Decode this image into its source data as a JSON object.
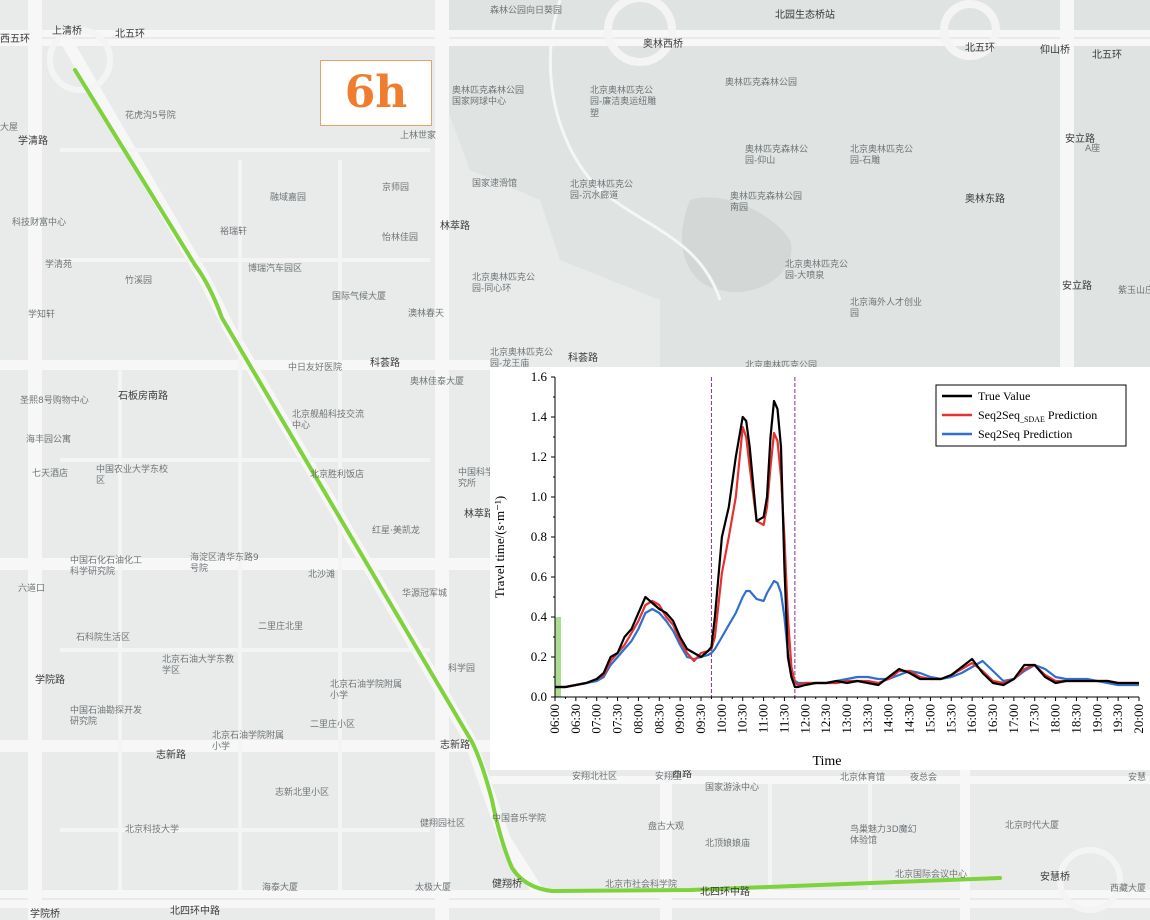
{
  "overlay": {
    "hour_label": "6h"
  },
  "map": {
    "route_color": "#7ed23c",
    "labels": [
      "上清桥",
      "北五环",
      "森林公园向日葵园",
      "北园生态桥站",
      "奥林西桥",
      "北五环",
      "仰山桥",
      "北五环",
      "奥林匹克森林公园国家网球中心",
      "北京奥林匹克公园-廉洁奥运纽雕塑",
      "奥林匹克森林公园",
      "花虎沟5号院",
      "大屋",
      "学清路",
      "上林世家",
      "国家速滑馆",
      "北京奥林匹克公园-沉水廊道",
      "奥林匹克森林公园-仰山",
      "北京奥林匹克公园-石雕",
      "安立路",
      "A座",
      "融域嘉园",
      "京师园",
      "奥林匹克森林公园南园",
      "奥林东路",
      "科技财富中心",
      "裕瑞轩",
      "林萃路",
      "怡林佳园",
      "学清苑",
      "博瑞汽车园区",
      "北京奥林匹克公园-同心环",
      "北京奥林匹克公园-大喷泉",
      "竹溪园",
      "国际气候大厦",
      "北京海外人才创业园",
      "紫玉山庄",
      "学知轩",
      "澳林春天",
      "北京奥林匹克公园-龙王庙",
      "科荟路",
      "科荟路",
      "北京奥林匹克公园",
      "中日友好医院",
      "奥林佳泰大厦",
      "圣熙8号购物中心",
      "石板房南路",
      "北京舰船科技交流中心",
      "海丰园公寓",
      "北京胜利饭店",
      "七天酒店",
      "中国农业大学东校区",
      "中国科学院心理研究所",
      "林萃路",
      "红星·美凯龙",
      "中国石化石油化工科学研究院",
      "海淀区清华东路9号院",
      "北沙滩",
      "六道口",
      "华源冠军城",
      "二里庄北里",
      "石科院生活区",
      "北京石油大学东教学区",
      "北京石油学院附属小学",
      "中国石油勘探开发研究院",
      "二里庄小区",
      "北京石油学院附属小学",
      "志新路",
      "志新路",
      "安翔北社区",
      "安翔里",
      "学院路",
      "北京体育馆",
      "夜总会",
      "安慧",
      "志新北里小区",
      "国家游泳中心",
      "健翔园社区",
      "中国音乐学院",
      "北京科技大学",
      "盘古大观",
      "北京时代大厦",
      "北顶娘娘庙",
      "鸟巢魅力3D魔幻体验馆",
      "海泰大厦",
      "太极大厦",
      "健翔桥",
      "北京市社会科学院",
      "北京国际会议中心",
      "安慧桥",
      "西藏大厦",
      "学院桥",
      "北四环中路",
      "北四环中路",
      "科学园",
      "西路",
      "安立路",
      "西五环"
    ]
  },
  "chart_data": {
    "type": "line",
    "x_categories": [
      "06:00",
      "06:30",
      "07:00",
      "07:30",
      "08:00",
      "08:30",
      "09:00",
      "09:30",
      "10:00",
      "10:30",
      "11:00",
      "11:30",
      "12:00",
      "12:30",
      "13:00",
      "13:30",
      "14:00",
      "14:30",
      "15:00",
      "15:30",
      "16:00",
      "16:30",
      "17:00",
      "17:30",
      "18:00",
      "18:30",
      "19:00",
      "19:30",
      "20:00"
    ],
    "xlabel": "Time",
    "ylabel": "Travel time/(s·m⁻¹)",
    "ylim": [
      0,
      1.6
    ],
    "yticks": [
      "0.0",
      "0.2",
      "0.4",
      "0.6",
      "0.8",
      "1.0",
      "1.2",
      "1.4",
      "1.6"
    ],
    "annotations": {
      "vertical_dashed_lines_at": [
        "09:45",
        "11:45"
      ],
      "highlight_band": {
        "from": "06:00",
        "to": "06:08",
        "height": 0.4
      }
    },
    "legend": {
      "placement": "top-right"
    },
    "series": [
      {
        "name": "True Value",
        "legend_main": "True Value",
        "legend_sub": "",
        "legend_suffix": "",
        "color": "#000000",
        "x": [
          "06:00",
          "06:15",
          "06:30",
          "06:45",
          "07:00",
          "07:10",
          "07:20",
          "07:30",
          "07:40",
          "07:50",
          "08:00",
          "08:10",
          "08:20",
          "08:30",
          "08:40",
          "08:50",
          "09:00",
          "09:10",
          "09:20",
          "09:30",
          "09:40",
          "09:45",
          "09:50",
          "10:00",
          "10:10",
          "10:20",
          "10:30",
          "10:35",
          "10:40",
          "10:50",
          "11:00",
          "11:05",
          "11:10",
          "11:15",
          "11:20",
          "11:25",
          "11:30",
          "11:35",
          "11:40",
          "11:45",
          "11:50",
          "12:00",
          "12:15",
          "12:30",
          "12:45",
          "13:00",
          "13:15",
          "13:30",
          "13:45",
          "14:00",
          "14:15",
          "14:30",
          "14:45",
          "15:00",
          "15:15",
          "15:30",
          "15:45",
          "16:00",
          "16:15",
          "16:30",
          "16:45",
          "17:00",
          "17:15",
          "17:30",
          "17:45",
          "18:00",
          "18:15",
          "18:30",
          "18:45",
          "19:00",
          "19:15",
          "19:30",
          "19:45",
          "20:00"
        ],
        "y": [
          0.05,
          0.05,
          0.06,
          0.07,
          0.09,
          0.12,
          0.2,
          0.22,
          0.3,
          0.34,
          0.42,
          0.5,
          0.47,
          0.44,
          0.42,
          0.38,
          0.3,
          0.24,
          0.22,
          0.2,
          0.23,
          0.25,
          0.4,
          0.8,
          0.95,
          1.2,
          1.4,
          1.38,
          1.25,
          0.88,
          0.9,
          1.0,
          1.3,
          1.48,
          1.44,
          1.25,
          0.65,
          0.2,
          0.1,
          0.05,
          0.05,
          0.06,
          0.07,
          0.07,
          0.08,
          0.07,
          0.08,
          0.07,
          0.06,
          0.1,
          0.14,
          0.12,
          0.09,
          0.09,
          0.09,
          0.11,
          0.15,
          0.19,
          0.12,
          0.07,
          0.06,
          0.09,
          0.16,
          0.16,
          0.1,
          0.07,
          0.08,
          0.08,
          0.08,
          0.08,
          0.08,
          0.07,
          0.07,
          0.07
        ]
      },
      {
        "name": "Seq2Seq_SDAE Prediction",
        "legend_main": "Seq2Seq",
        "legend_sub": "_SDAE",
        "legend_suffix": " Prediction",
        "color": "#e8312f",
        "x": [
          "06:00",
          "06:15",
          "06:30",
          "06:45",
          "07:00",
          "07:10",
          "07:20",
          "07:30",
          "07:40",
          "07:50",
          "08:00",
          "08:10",
          "08:20",
          "08:30",
          "08:40",
          "08:50",
          "09:00",
          "09:10",
          "09:20",
          "09:30",
          "09:40",
          "09:45",
          "09:50",
          "10:00",
          "10:10",
          "10:20",
          "10:30",
          "10:35",
          "10:40",
          "10:50",
          "11:00",
          "11:05",
          "11:10",
          "11:15",
          "11:20",
          "11:25",
          "11:30",
          "11:35",
          "11:40",
          "11:45",
          "11:50",
          "12:00",
          "12:15",
          "12:30",
          "12:45",
          "13:00",
          "13:15",
          "13:30",
          "13:45",
          "14:00",
          "14:15",
          "14:30",
          "14:45",
          "15:00",
          "15:15",
          "15:30",
          "15:45",
          "16:00",
          "16:15",
          "16:30",
          "16:45",
          "17:00",
          "17:15",
          "17:30",
          "17:45",
          "18:00",
          "18:15",
          "18:30",
          "18:45",
          "19:00",
          "19:15",
          "19:30",
          "19:45",
          "20:00"
        ],
        "y": [
          0.05,
          0.05,
          0.06,
          0.07,
          0.09,
          0.11,
          0.18,
          0.22,
          0.26,
          0.32,
          0.38,
          0.46,
          0.48,
          0.46,
          0.4,
          0.36,
          0.28,
          0.22,
          0.18,
          0.22,
          0.23,
          0.24,
          0.3,
          0.62,
          0.8,
          1.0,
          1.35,
          1.3,
          1.15,
          0.88,
          0.86,
          0.95,
          1.15,
          1.32,
          1.28,
          1.1,
          0.8,
          0.4,
          0.15,
          0.07,
          0.06,
          0.07,
          0.07,
          0.07,
          0.07,
          0.08,
          0.08,
          0.08,
          0.07,
          0.09,
          0.13,
          0.13,
          0.1,
          0.09,
          0.09,
          0.11,
          0.14,
          0.17,
          0.13,
          0.08,
          0.07,
          0.09,
          0.14,
          0.16,
          0.11,
          0.08,
          0.08,
          0.08,
          0.08,
          0.08,
          0.08,
          0.07,
          0.07,
          0.07
        ]
      },
      {
        "name": "Seq2Seq Prediction",
        "legend_main": "Seq2Seq Prediction",
        "legend_sub": "",
        "legend_suffix": "",
        "color": "#2f6fd0",
        "x": [
          "06:00",
          "06:15",
          "06:30",
          "06:45",
          "07:00",
          "07:10",
          "07:20",
          "07:30",
          "07:40",
          "07:50",
          "08:00",
          "08:10",
          "08:20",
          "08:30",
          "08:40",
          "08:50",
          "09:00",
          "09:10",
          "09:20",
          "09:30",
          "09:40",
          "09:45",
          "09:50",
          "10:00",
          "10:10",
          "10:20",
          "10:30",
          "10:35",
          "10:40",
          "10:50",
          "11:00",
          "11:05",
          "11:10",
          "11:15",
          "11:20",
          "11:25",
          "11:30",
          "11:35",
          "11:40",
          "11:45",
          "11:50",
          "12:00",
          "12:15",
          "12:30",
          "12:45",
          "13:00",
          "13:15",
          "13:30",
          "13:45",
          "14:00",
          "14:15",
          "14:30",
          "14:45",
          "15:00",
          "15:15",
          "15:30",
          "15:45",
          "16:00",
          "16:15",
          "16:30",
          "16:45",
          "17:00",
          "17:15",
          "17:30",
          "17:45",
          "18:00",
          "18:15",
          "18:30",
          "18:45",
          "19:00",
          "19:15",
          "19:30",
          "19:45",
          "20:00"
        ],
        "y": [
          0.05,
          0.05,
          0.06,
          0.07,
          0.08,
          0.1,
          0.16,
          0.2,
          0.24,
          0.28,
          0.34,
          0.42,
          0.44,
          0.42,
          0.38,
          0.33,
          0.26,
          0.2,
          0.19,
          0.2,
          0.21,
          0.22,
          0.24,
          0.3,
          0.36,
          0.42,
          0.5,
          0.53,
          0.53,
          0.49,
          0.48,
          0.52,
          0.55,
          0.58,
          0.57,
          0.52,
          0.4,
          0.22,
          0.12,
          0.08,
          0.07,
          0.07,
          0.07,
          0.07,
          0.08,
          0.09,
          0.1,
          0.1,
          0.09,
          0.09,
          0.11,
          0.13,
          0.12,
          0.1,
          0.09,
          0.1,
          0.12,
          0.15,
          0.18,
          0.13,
          0.08,
          0.09,
          0.13,
          0.16,
          0.14,
          0.1,
          0.09,
          0.09,
          0.09,
          0.08,
          0.07,
          0.06,
          0.06,
          0.06
        ]
      }
    ]
  }
}
